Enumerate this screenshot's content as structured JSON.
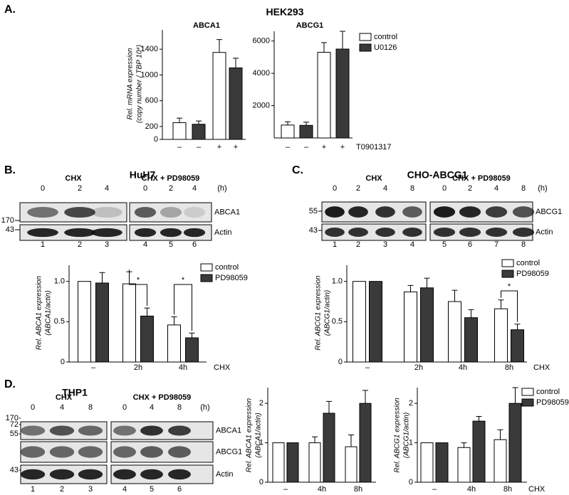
{
  "panel_labels": [
    "A.",
    "B.",
    "C.",
    "D."
  ],
  "panel_titles": [
    "HEK293",
    "HuH7",
    "CHO-ABCG1",
    "THP1"
  ],
  "blots": [
    {
      "groups": [
        {
          "label": "CHX",
          "lanes": [
            0,
            2,
            4
          ]
        },
        {
          "label": "CHX + PD98059",
          "lanes": [
            0,
            2,
            4
          ]
        }
      ],
      "unit": "(h)",
      "rows": [
        "ABCA1",
        "Actin"
      ],
      "markers": [
        170,
        43
      ],
      "lane_numbers": [
        1,
        2,
        3,
        4,
        5,
        6
      ]
    },
    {
      "groups": [
        {
          "label": "CHX",
          "lanes": [
            0,
            2,
            4,
            8
          ]
        },
        {
          "label": "CHX + PD98059",
          "lanes": [
            0,
            2,
            4,
            8
          ]
        }
      ],
      "unit": "(h)",
      "rows": [
        "ABCG1",
        "Actin"
      ],
      "markers": [
        55,
        43
      ],
      "lane_numbers": [
        1,
        2,
        3,
        4,
        5,
        6,
        7,
        8
      ]
    },
    {
      "groups": [
        {
          "label": "CHX",
          "lanes": [
            0,
            4,
            8
          ]
        },
        {
          "label": "CHX + PD98059",
          "lanes": [
            0,
            4,
            8
          ]
        }
      ],
      "unit": "(h)",
      "rows": [
        "ABCA1",
        "ABCG1",
        "Actin"
      ],
      "markers": [
        170,
        72,
        55,
        43
      ],
      "lane_numbers": [
        1,
        2,
        3,
        4,
        5,
        6
      ]
    }
  ],
  "chart_data": [
    {
      "type": "bar",
      "title": "ABCA1",
      "y_label": [
        "Rel. mRNA expression",
        "(copy number / TBP 10⁴)"
      ],
      "categories": [
        "–",
        "–",
        "+",
        "+"
      ],
      "series": [
        {
          "color": "#ffffff",
          "values": [
            260,
            null,
            1350,
            null
          ],
          "errors": [
            70,
            null,
            200,
            null
          ]
        },
        {
          "color": "#3a3a3a",
          "values": [
            null,
            235,
            null,
            1110
          ],
          "errors": [
            null,
            50,
            null,
            150
          ]
        }
      ],
      "ylim": [
        0,
        1700
      ],
      "yticks": [
        0,
        200,
        600,
        1000,
        1400
      ]
    },
    {
      "type": "bar",
      "title": "ABCG1",
      "x_label": "T0901317",
      "categories": [
        "–",
        "–",
        "+",
        "+"
      ],
      "series": [
        {
          "name": "control",
          "color": "#ffffff",
          "values": [
            800,
            null,
            5300,
            null
          ],
          "errors": [
            200,
            null,
            600,
            null
          ]
        },
        {
          "name": "U0126",
          "color": "#3a3a3a",
          "values": [
            null,
            780,
            null,
            5500
          ],
          "errors": [
            null,
            200,
            null,
            1100
          ]
        }
      ],
      "ylim": [
        0,
        6600
      ],
      "yticks": [
        2000,
        4000,
        6000
      ],
      "legend": true
    },
    {
      "type": "bar",
      "y_label": [
        "Rel. ABCA1 expression",
        "(ABCA1/actin)"
      ],
      "x_label": "CHX",
      "categories": [
        "–",
        "2h",
        "4h"
      ],
      "series": [
        {
          "name": "control",
          "color": "#ffffff",
          "values": [
            1.0,
            0.97,
            0.46
          ],
          "errors": [
            null,
            0.15,
            0.1
          ]
        },
        {
          "name": "PD98059",
          "color": "#3a3a3a",
          "values": [
            0.98,
            0.57,
            0.3
          ],
          "errors": [
            0.13,
            0.1,
            0.06
          ]
        }
      ],
      "ylim": [
        0,
        1.2
      ],
      "yticks": [
        0,
        0.5,
        {
          "value": 1,
          "label": "1.0"
        }
      ],
      "annotations": [
        {
          "text": "*",
          "x": "2h"
        },
        {
          "text": "*",
          "x": "4h"
        }
      ],
      "legend": true
    },
    {
      "type": "bar",
      "y_label": [
        "Rel. ABCG1 expression",
        "(ABCG1/actin)"
      ],
      "x_label": "CHX",
      "categories": [
        "–",
        "2h",
        "4h",
        "8h"
      ],
      "series": [
        {
          "name": "control",
          "color": "#ffffff",
          "values": [
            1.0,
            0.87,
            0.75,
            0.66
          ],
          "errors": [
            null,
            0.08,
            0.14,
            0.11
          ]
        },
        {
          "name": "PD98059",
          "color": "#3a3a3a",
          "values": [
            1.0,
            0.92,
            0.55,
            0.4
          ],
          "errors": [
            null,
            0.12,
            0.1,
            0.07
          ]
        }
      ],
      "ylim": [
        0,
        1.2
      ],
      "yticks": [
        0,
        0.5,
        {
          "value": 1,
          "label": "1.0"
        }
      ],
      "annotations": [
        {
          "text": "*",
          "x": "8h"
        }
      ],
      "legend": true
    },
    {
      "type": "bar",
      "y_label": [
        "Rel. ABCA1 expression",
        "(ABCA1/actin)"
      ],
      "categories": [
        "–",
        "4h",
        "8h"
      ],
      "series": [
        {
          "color": "#ffffff",
          "values": [
            1.0,
            1.0,
            0.9
          ],
          "errors": [
            null,
            0.15,
            0.3
          ]
        },
        {
          "color": "#3a3a3a",
          "values": [
            1.0,
            1.75,
            2.0
          ],
          "errors": [
            null,
            0.3,
            0.33
          ]
        }
      ],
      "ylim": [
        0,
        2.4
      ],
      "yticks": [
        0,
        1,
        2
      ]
    },
    {
      "type": "bar",
      "y_label": [
        "Rel. ABCG1 expression",
        "(ABCG1/actin)"
      ],
      "x_label": "CHX",
      "categories": [
        "–",
        "4h",
        "8h"
      ],
      "series": [
        {
          "name": "control",
          "color": "#ffffff",
          "values": [
            1.0,
            0.88,
            1.08
          ],
          "errors": [
            null,
            0.12,
            0.25
          ]
        },
        {
          "name": "PD98059",
          "color": "#3a3a3a",
          "values": [
            1.0,
            1.55,
            2.0
          ],
          "errors": [
            null,
            0.12,
            0.4
          ]
        }
      ],
      "ylim": [
        0,
        2.4
      ],
      "yticks": [
        0,
        1,
        2
      ],
      "legend": true
    }
  ]
}
